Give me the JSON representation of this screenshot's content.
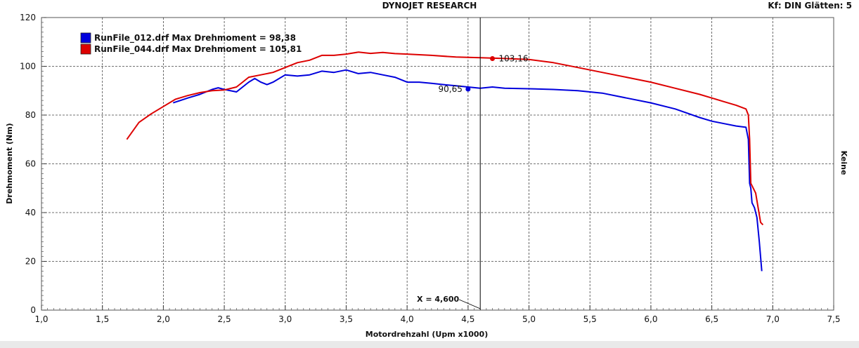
{
  "header": {
    "title": "DYNOJET RESEARCH",
    "top_right": "Kf: DIN  Glätten: 5"
  },
  "right_label": "Keine",
  "chart_data": {
    "type": "line",
    "title": "DYNOJET RESEARCH",
    "xlabel": "Motordrehzahl (Upm x1000)",
    "ylabel": "Drehmoment (Nm)",
    "xlim": [
      1.0,
      7.5
    ],
    "ylim": [
      0,
      120
    ],
    "x_ticks": [
      "1,0",
      "1,5",
      "2,0",
      "2,5",
      "3,0",
      "3,5",
      "4,0",
      "4,5",
      "5,0",
      "5,5",
      "6,0",
      "6,5",
      "7,0",
      "7,5"
    ],
    "y_ticks": [
      "0",
      "20",
      "40",
      "60",
      "80",
      "100",
      "120"
    ],
    "grid": true,
    "legend_position": "top-left",
    "cursor": {
      "x": 4.6,
      "label": "X = 4,600"
    },
    "series": [
      {
        "name": "RunFile_012.drf Max Drehmoment = 98,38",
        "color": "#0000dd",
        "marker": {
          "x": 4.5,
          "y": 90.65,
          "label": "90,65"
        },
        "points": [
          [
            2.08,
            85
          ],
          [
            2.2,
            87
          ],
          [
            2.3,
            88.5
          ],
          [
            2.4,
            90.5
          ],
          [
            2.45,
            91.2
          ],
          [
            2.5,
            90.5
          ],
          [
            2.6,
            89.5
          ],
          [
            2.7,
            93.5
          ],
          [
            2.75,
            95
          ],
          [
            2.8,
            93.5
          ],
          [
            2.85,
            92.5
          ],
          [
            2.9,
            93.5
          ],
          [
            3.0,
            96.5
          ],
          [
            3.1,
            96
          ],
          [
            3.2,
            96.5
          ],
          [
            3.3,
            98
          ],
          [
            3.4,
            97.5
          ],
          [
            3.5,
            98.5
          ],
          [
            3.6,
            97
          ],
          [
            3.7,
            97.5
          ],
          [
            3.8,
            96.5
          ],
          [
            3.9,
            95.5
          ],
          [
            4.0,
            93.5
          ],
          [
            4.1,
            93.5
          ],
          [
            4.2,
            93
          ],
          [
            4.3,
            92.5
          ],
          [
            4.4,
            92
          ],
          [
            4.5,
            91.5
          ],
          [
            4.6,
            91
          ],
          [
            4.7,
            91.5
          ],
          [
            4.8,
            91
          ],
          [
            5.0,
            90.8
          ],
          [
            5.2,
            90.5
          ],
          [
            5.4,
            90
          ],
          [
            5.6,
            89
          ],
          [
            5.8,
            87
          ],
          [
            6.0,
            85
          ],
          [
            6.2,
            82.5
          ],
          [
            6.4,
            79
          ],
          [
            6.5,
            77.5
          ],
          [
            6.6,
            76.5
          ],
          [
            6.7,
            75.5
          ],
          [
            6.78,
            75
          ],
          [
            6.8,
            70
          ],
          [
            6.81,
            52
          ],
          [
            6.82,
            50
          ],
          [
            6.83,
            44
          ],
          [
            6.85,
            42
          ],
          [
            6.87,
            38
          ],
          [
            6.89,
            28
          ],
          [
            6.91,
            16
          ]
        ]
      },
      {
        "name": "RunFile_044.drf Max Drehmoment = 105,81",
        "color": "#dd0000",
        "marker": {
          "x": 4.7,
          "y": 103.16,
          "label": "103,16"
        },
        "points": [
          [
            1.7,
            70
          ],
          [
            1.8,
            77
          ],
          [
            1.9,
            80.5
          ],
          [
            2.0,
            83.5
          ],
          [
            2.1,
            86.5
          ],
          [
            2.2,
            88
          ],
          [
            2.3,
            89.2
          ],
          [
            2.4,
            90
          ],
          [
            2.5,
            90.3
          ],
          [
            2.6,
            91.5
          ],
          [
            2.65,
            93.5
          ],
          [
            2.7,
            95.5
          ],
          [
            2.8,
            96.5
          ],
          [
            2.9,
            97.5
          ],
          [
            3.0,
            99.5
          ],
          [
            3.1,
            101.5
          ],
          [
            3.2,
            102.5
          ],
          [
            3.3,
            104.5
          ],
          [
            3.4,
            104.5
          ],
          [
            3.5,
            105
          ],
          [
            3.6,
            105.8
          ],
          [
            3.7,
            105.3
          ],
          [
            3.8,
            105.7
          ],
          [
            3.9,
            105.2
          ],
          [
            4.0,
            105
          ],
          [
            4.2,
            104.5
          ],
          [
            4.4,
            103.8
          ],
          [
            4.6,
            103.5
          ],
          [
            4.8,
            103.2
          ],
          [
            5.0,
            102.8
          ],
          [
            5.2,
            101.5
          ],
          [
            5.4,
            99.5
          ],
          [
            5.6,
            97.5
          ],
          [
            5.8,
            95.5
          ],
          [
            6.0,
            93.5
          ],
          [
            6.2,
            91
          ],
          [
            6.4,
            88.5
          ],
          [
            6.6,
            85.5
          ],
          [
            6.7,
            84
          ],
          [
            6.78,
            82.5
          ],
          [
            6.8,
            80
          ],
          [
            6.81,
            70
          ],
          [
            6.82,
            52
          ],
          [
            6.84,
            50
          ],
          [
            6.86,
            48
          ],
          [
            6.88,
            42
          ],
          [
            6.9,
            36
          ],
          [
            6.92,
            35
          ]
        ]
      }
    ]
  }
}
